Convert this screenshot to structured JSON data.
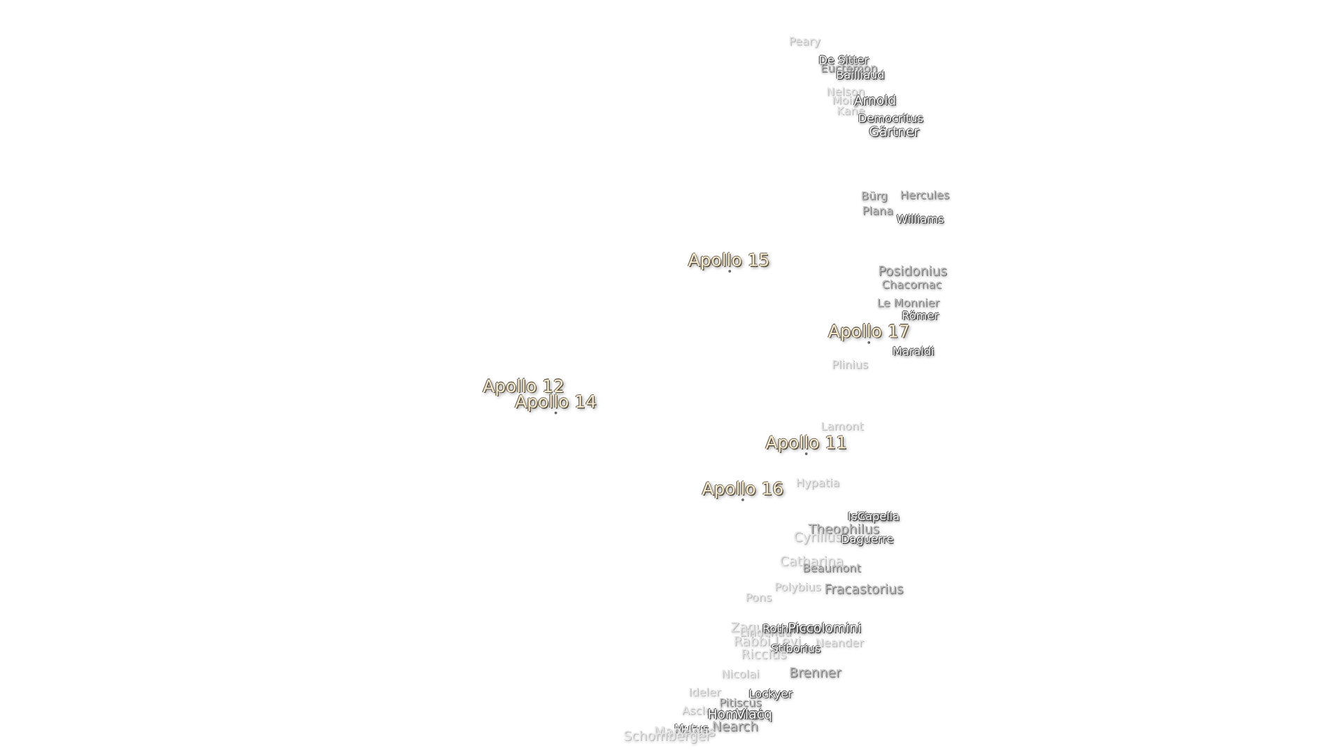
{
  "labels": [
    {
      "text": "Peary"
    },
    {
      "text": "De Sitter"
    },
    {
      "text": "Euctemon"
    },
    {
      "text": "Bailliaud"
    },
    {
      "text": "Nelson"
    },
    {
      "text": "Moigno"
    },
    {
      "text": "Arnold"
    },
    {
      "text": "Kane"
    },
    {
      "text": "Democritus"
    },
    {
      "text": "Gärtner"
    },
    {
      "text": "Bürg"
    },
    {
      "text": "Hercules"
    },
    {
      "text": "Plana"
    },
    {
      "text": "Williams"
    },
    {
      "text": "Apollo 15"
    },
    {
      "text": "Posidonius"
    },
    {
      "text": "Chacornac"
    },
    {
      "text": "Le Monnier"
    },
    {
      "text": "Römer"
    },
    {
      "text": "Apollo 17"
    },
    {
      "text": "Maraldi"
    },
    {
      "text": "Plinius"
    },
    {
      "text": "Apollo 12"
    },
    {
      "text": "Apollo 14"
    },
    {
      "text": "Lamont"
    },
    {
      "text": "Apollo 11"
    },
    {
      "text": "Apollo 16"
    },
    {
      "text": "Hypatia"
    },
    {
      "text": "Isidorus"
    },
    {
      "text": "Capella"
    },
    {
      "text": "Theophilus"
    },
    {
      "text": "Cyrillus"
    },
    {
      "text": "Daguerre"
    },
    {
      "text": "Catharina"
    },
    {
      "text": "Beaumont"
    },
    {
      "text": "Polybius"
    },
    {
      "text": "Fracastorius"
    },
    {
      "text": "Pons"
    },
    {
      "text": "Zagut"
    },
    {
      "text": "Lindenau"
    },
    {
      "text": "Rothmann"
    },
    {
      "text": "Piccolomini"
    },
    {
      "text": "Rabbi Levi"
    },
    {
      "text": "Neander"
    },
    {
      "text": "Stiborius"
    },
    {
      "text": "Riccius"
    },
    {
      "text": "Nicolai"
    },
    {
      "text": "Brenner"
    },
    {
      "text": "Ideler"
    },
    {
      "text": "Lockyer"
    },
    {
      "text": "Pitiscus"
    },
    {
      "text": "Asclepi"
    },
    {
      "text": "Hommel"
    },
    {
      "text": "Vlacq"
    },
    {
      "text": "Nearch"
    },
    {
      "text": "Mutus"
    },
    {
      "text": "Manzinus"
    },
    {
      "text": "Schomberger"
    }
  ]
}
